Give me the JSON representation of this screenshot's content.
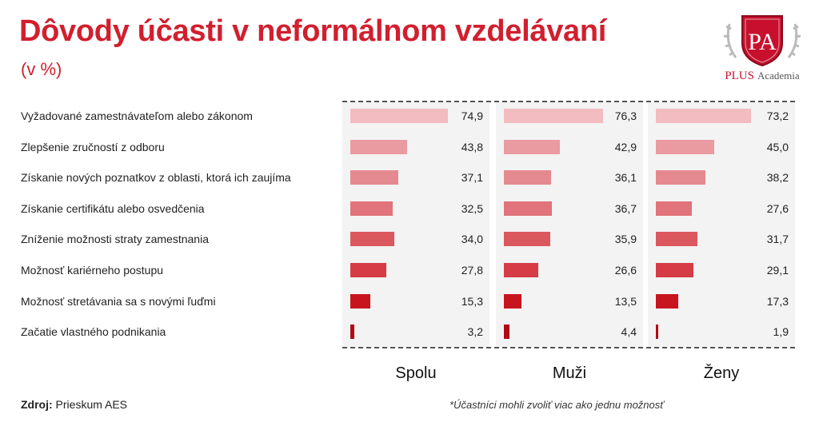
{
  "title": "Dôvody účasti v neformálnom vzdelávaní",
  "subtitle": "(v %)",
  "logo": {
    "initials": "PA",
    "brand": "PLUS",
    "brand_suffix": "Academia"
  },
  "footer": {
    "source_label": "Zdroj:",
    "source_value": "Prieskum AES",
    "note": "*Účastníci mohli zvoliť viac ako jednu možnosť"
  },
  "chart_data": {
    "type": "bar",
    "orientation": "horizontal",
    "title": "Dôvody účasti v neformálnom vzdelávaní",
    "subtitle": "(v %)",
    "categories": [
      "Vyžadované zamestnávateľom alebo zákonom",
      "Zlepšenie zručností z odboru",
      "Získanie nových poznatkov z oblasti, ktorá ich zaujíma",
      "Získanie certifikátu alebo osvedčenia",
      "Zníženie možnosti straty zamestnania",
      "Možnosť kariérneho postupu",
      "Možnosť stretávania sa s novými ľuďmi",
      "Začatie vlastného podnikania"
    ],
    "series": [
      {
        "name": "Spolu",
        "values": [
          74.9,
          43.8,
          37.1,
          32.5,
          34.0,
          27.8,
          15.3,
          3.2
        ],
        "labels": [
          "74,9",
          "43,8",
          "37,1",
          "32,5",
          "34,0",
          "27,8",
          "15,3",
          "3,2"
        ]
      },
      {
        "name": "Muži",
        "values": [
          76.3,
          42.9,
          36.1,
          36.7,
          35.9,
          26.6,
          13.5,
          4.4
        ],
        "labels": [
          "76,3",
          "42,9",
          "36,1",
          "36,7",
          "35,9",
          "26,6",
          "13,5",
          "4,4"
        ]
      },
      {
        "name": "Ženy",
        "values": [
          73.2,
          45.0,
          38.2,
          27.6,
          31.7,
          29.1,
          17.3,
          1.9
        ],
        "labels": [
          "73,2",
          "45,0",
          "38,2",
          "27,6",
          "31,7",
          "29,1",
          "17,3",
          "1,9"
        ]
      }
    ],
    "bar_colors": [
      "#f2bcc0",
      "#ea9aa1",
      "#e58990",
      "#e0737b",
      "#dc585f",
      "#d63c45",
      "#c8141e",
      "#b00a14"
    ],
    "xlim": [
      0,
      80
    ],
    "grid": false,
    "legend": "none"
  }
}
